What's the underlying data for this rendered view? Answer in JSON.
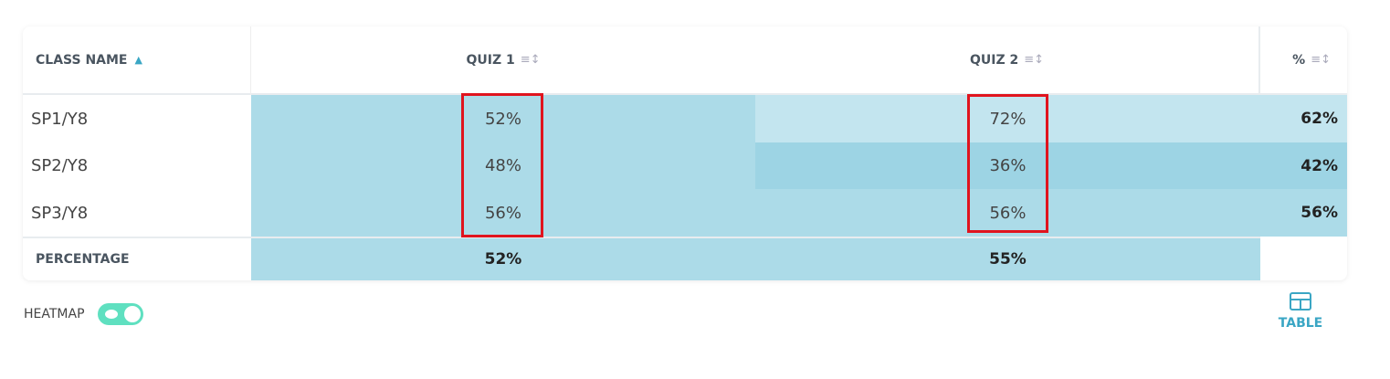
{
  "table": {
    "headers": [
      "CLASS NAME",
      "QUIZ 1",
      "QUIZ 2",
      "%"
    ],
    "rows": [
      [
        "SP1/Y8",
        "52%",
        "72%",
        "62%"
      ],
      [
        "SP2/Y8",
        "48%",
        "36%",
        "42%"
      ],
      [
        "SP3/Y8",
        "56%",
        "56%",
        "56%"
      ]
    ],
    "footer": [
      "PERCENTAGE",
      "52%",
      "55%"
    ]
  },
  "controls": {
    "heatmap": "HEATMAP",
    "view": "TABLE"
  }
}
